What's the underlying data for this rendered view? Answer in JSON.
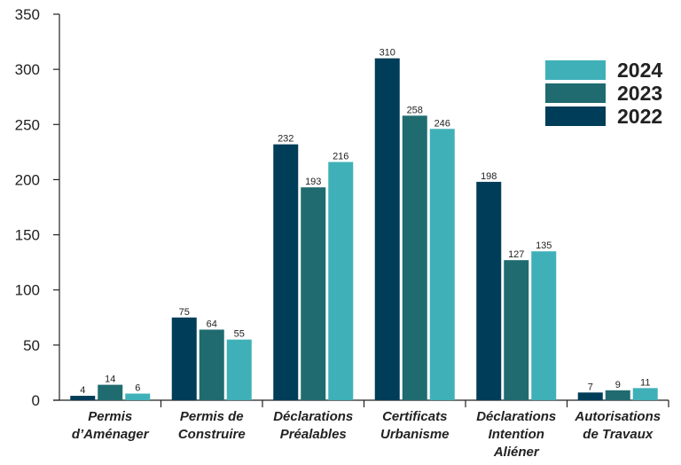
{
  "chart_data": {
    "type": "bar",
    "title": "",
    "xlabel": "",
    "ylabel": "",
    "ylim": [
      0,
      350
    ],
    "yticks": [
      0,
      50,
      100,
      150,
      200,
      250,
      300,
      350
    ],
    "categories": [
      [
        "Permis",
        "d’Aménager"
      ],
      [
        "Permis de",
        "Construire"
      ],
      [
        "Déclarations",
        "Préalables"
      ],
      [
        "Certificats",
        "Urbanisme"
      ],
      [
        "Déclarations",
        "Intention",
        "Aliéner"
      ],
      [
        "Autorisations",
        "de Travaux"
      ]
    ],
    "series": [
      {
        "name": "2022",
        "color": "#003d58",
        "values": [
          4,
          75,
          232,
          310,
          198,
          7
        ]
      },
      {
        "name": "2023",
        "color": "#1f6b70",
        "values": [
          14,
          64,
          193,
          258,
          127,
          9
        ]
      },
      {
        "name": "2024",
        "color": "#3fb0b8",
        "values": [
          6,
          55,
          216,
          246,
          135,
          11
        ]
      }
    ],
    "legend_position": "top-right",
    "legend_order": [
      "2024",
      "2023",
      "2022"
    ],
    "grid": false,
    "data_labels": true
  }
}
